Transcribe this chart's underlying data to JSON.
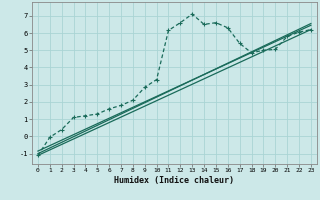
{
  "title": "",
  "xlabel": "Humidex (Indice chaleur)",
  "ylabel": "",
  "background_color": "#cce8e8",
  "grid_color": "#aad4d4",
  "line_color": "#1a6b5a",
  "xlim": [
    -0.5,
    23.5
  ],
  "ylim": [
    -1.6,
    7.8
  ],
  "xticks": [
    0,
    1,
    2,
    3,
    4,
    5,
    6,
    7,
    8,
    9,
    10,
    11,
    12,
    13,
    14,
    15,
    16,
    17,
    18,
    19,
    20,
    21,
    22,
    23
  ],
  "yticks": [
    -1,
    0,
    1,
    2,
    3,
    4,
    5,
    6,
    7
  ],
  "curve1_x": [
    0,
    1,
    2,
    3,
    4,
    5,
    6,
    7,
    8,
    9,
    10,
    11,
    12,
    13,
    14,
    15,
    16,
    17,
    18,
    19,
    20,
    21,
    22,
    23
  ],
  "curve1_y": [
    -1.1,
    -0.05,
    0.4,
    1.1,
    1.2,
    1.3,
    1.6,
    1.8,
    2.1,
    2.85,
    3.3,
    6.15,
    6.6,
    7.1,
    6.5,
    6.6,
    6.3,
    5.4,
    4.85,
    5.0,
    5.05,
    5.8,
    6.05,
    6.2
  ],
  "curve2_x": [
    0,
    23
  ],
  "curve2_y": [
    -1.1,
    6.2
  ],
  "curve3_x": [
    0,
    23
  ],
  "curve3_y": [
    -0.85,
    6.45
  ],
  "curve4_x": [
    0,
    23
  ],
  "curve4_y": [
    -1.0,
    6.55
  ]
}
